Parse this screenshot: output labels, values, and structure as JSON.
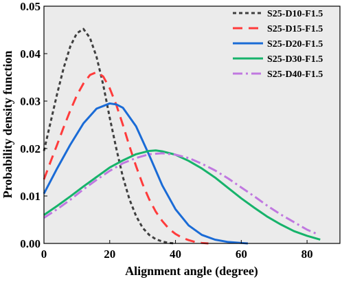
{
  "chart_data": {
    "type": "line",
    "title": "",
    "xlabel": "Alignment angle (degree)",
    "ylabel": "Probability density function",
    "xlim": [
      0,
      90
    ],
    "ylim": [
      0,
      0.05
    ],
    "xticks": [
      0,
      20,
      40,
      60,
      80
    ],
    "xtick_labels": [
      "0",
      "20",
      "40",
      "60",
      "80"
    ],
    "yticks": [
      0,
      0.01,
      0.02,
      0.03,
      0.04,
      0.05
    ],
    "ytick_labels": [
      "0.00",
      "0.01",
      "0.02",
      "0.03",
      "0.04",
      "0.05"
    ],
    "grid": false,
    "background_color": "#ebebeb",
    "legend_position": "top-right",
    "series": [
      {
        "name": "S25-D10-F1.5",
        "color": "#3f3f3f",
        "dash": "dotted",
        "x": [
          0,
          2,
          4,
          6,
          8,
          10,
          12,
          14,
          16,
          18,
          20,
          22,
          24,
          26,
          28,
          30,
          32,
          34,
          36,
          38,
          40
        ],
        "y": [
          0.0195,
          0.0255,
          0.0315,
          0.037,
          0.0415,
          0.0443,
          0.0452,
          0.0433,
          0.0393,
          0.0335,
          0.0265,
          0.02,
          0.014,
          0.0093,
          0.0058,
          0.0033,
          0.0018,
          0.0009,
          0.0004,
          0.0001,
          0.0
        ]
      },
      {
        "name": "S25-D15-F1.5",
        "color": "#ff3b3b",
        "dash": "dashed",
        "x": [
          0,
          2,
          4,
          6,
          8,
          10,
          12,
          14,
          16,
          18,
          20,
          22,
          24,
          26,
          28,
          30,
          32,
          34,
          36,
          38,
          40,
          42,
          44,
          46,
          48,
          50
        ],
        "y": [
          0.0135,
          0.0172,
          0.0208,
          0.0245,
          0.028,
          0.0312,
          0.0337,
          0.0355,
          0.0361,
          0.0352,
          0.0327,
          0.0292,
          0.025,
          0.0205,
          0.0163,
          0.0125,
          0.0093,
          0.0067,
          0.0047,
          0.0031,
          0.002,
          0.0012,
          0.0007,
          0.0003,
          0.0001,
          0.0
        ]
      },
      {
        "name": "S25-D20-F1.5",
        "color": "#1a6bd6",
        "dash": "solid",
        "x": [
          0,
          4,
          8,
          12,
          16,
          20,
          22,
          24,
          28,
          32,
          36,
          40,
          44,
          48,
          52,
          56,
          60,
          62
        ],
        "y": [
          0.0105,
          0.0158,
          0.0208,
          0.0253,
          0.0284,
          0.0295,
          0.0293,
          0.0286,
          0.0247,
          0.0186,
          0.0122,
          0.0072,
          0.0038,
          0.0018,
          0.0008,
          0.0003,
          0.0001,
          0.0
        ]
      },
      {
        "name": "S25-D30-F1.5",
        "color": "#17b36b",
        "dash": "solid",
        "x": [
          0,
          4,
          8,
          12,
          16,
          20,
          24,
          28,
          32,
          34,
          36,
          40,
          44,
          48,
          52,
          56,
          60,
          64,
          68,
          72,
          76,
          80,
          84
        ],
        "y": [
          0.006,
          0.0079,
          0.0099,
          0.012,
          0.014,
          0.016,
          0.0175,
          0.0188,
          0.0195,
          0.0196,
          0.0194,
          0.0187,
          0.0174,
          0.0158,
          0.0139,
          0.0117,
          0.0095,
          0.0075,
          0.0056,
          0.004,
          0.0026,
          0.0016,
          0.0008
        ]
      },
      {
        "name": "S25-D40-F1.5",
        "color": "#c078e0",
        "dash": "dashdot",
        "x": [
          0,
          4,
          8,
          12,
          16,
          20,
          24,
          28,
          32,
          36,
          40,
          44,
          48,
          52,
          56,
          60,
          64,
          68,
          72,
          76,
          80,
          83
        ],
        "y": [
          0.0054,
          0.0072,
          0.0092,
          0.0114,
          0.0134,
          0.0153,
          0.0169,
          0.018,
          0.0188,
          0.019,
          0.0187,
          0.018,
          0.0168,
          0.0154,
          0.0137,
          0.0118,
          0.0099,
          0.0079,
          0.0061,
          0.0045,
          0.0029,
          0.002
        ]
      }
    ]
  }
}
